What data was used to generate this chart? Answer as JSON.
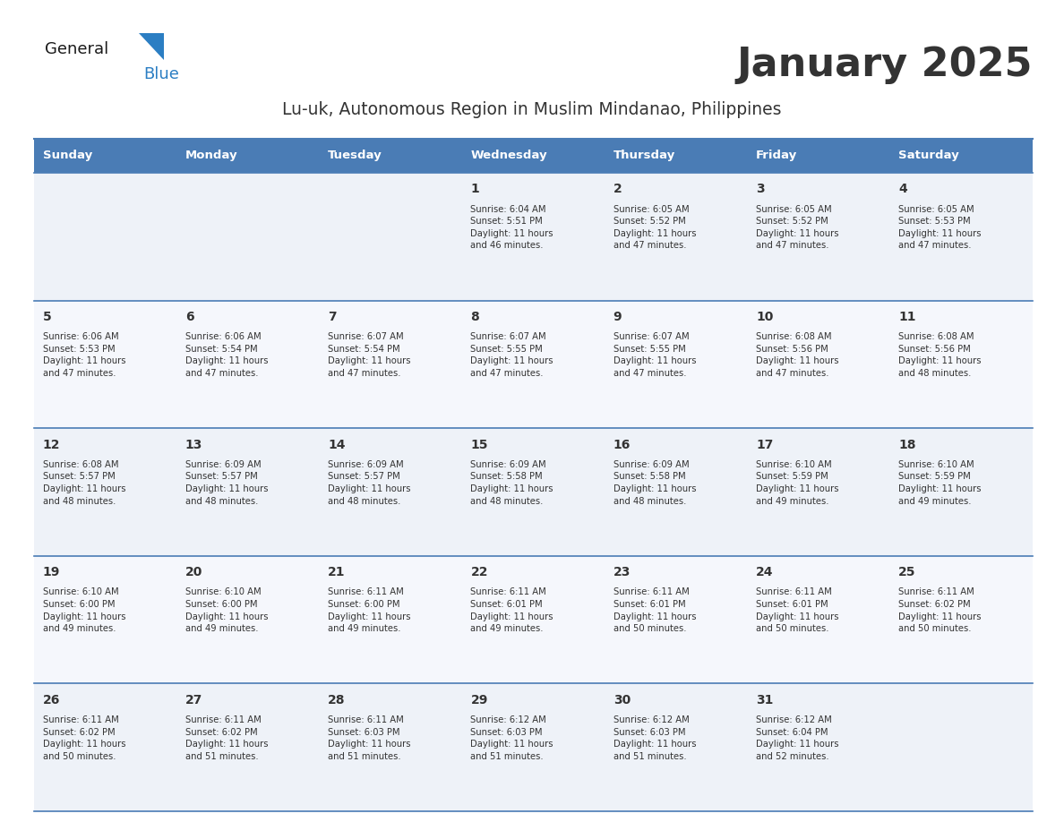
{
  "title": "January 2025",
  "subtitle": "Lu-uk, Autonomous Region in Muslim Mindanao, Philippines",
  "header_color": "#4a7cb5",
  "header_text_color": "#FFFFFF",
  "cell_bg_odd": "#F0F4FA",
  "cell_bg_even": "#FFFFFF",
  "border_color": "#4a7cb5",
  "text_color": "#333333",
  "info_text_color": "#333333",
  "days_of_week": [
    "Sunday",
    "Monday",
    "Tuesday",
    "Wednesday",
    "Thursday",
    "Friday",
    "Saturday"
  ],
  "calendar_data": [
    [
      {
        "day": "",
        "info": ""
      },
      {
        "day": "",
        "info": ""
      },
      {
        "day": "",
        "info": ""
      },
      {
        "day": "1",
        "info": "Sunrise: 6:04 AM\nSunset: 5:51 PM\nDaylight: 11 hours\nand 46 minutes."
      },
      {
        "day": "2",
        "info": "Sunrise: 6:05 AM\nSunset: 5:52 PM\nDaylight: 11 hours\nand 47 minutes."
      },
      {
        "day": "3",
        "info": "Sunrise: 6:05 AM\nSunset: 5:52 PM\nDaylight: 11 hours\nand 47 minutes."
      },
      {
        "day": "4",
        "info": "Sunrise: 6:05 AM\nSunset: 5:53 PM\nDaylight: 11 hours\nand 47 minutes."
      }
    ],
    [
      {
        "day": "5",
        "info": "Sunrise: 6:06 AM\nSunset: 5:53 PM\nDaylight: 11 hours\nand 47 minutes."
      },
      {
        "day": "6",
        "info": "Sunrise: 6:06 AM\nSunset: 5:54 PM\nDaylight: 11 hours\nand 47 minutes."
      },
      {
        "day": "7",
        "info": "Sunrise: 6:07 AM\nSunset: 5:54 PM\nDaylight: 11 hours\nand 47 minutes."
      },
      {
        "day": "8",
        "info": "Sunrise: 6:07 AM\nSunset: 5:55 PM\nDaylight: 11 hours\nand 47 minutes."
      },
      {
        "day": "9",
        "info": "Sunrise: 6:07 AM\nSunset: 5:55 PM\nDaylight: 11 hours\nand 47 minutes."
      },
      {
        "day": "10",
        "info": "Sunrise: 6:08 AM\nSunset: 5:56 PM\nDaylight: 11 hours\nand 47 minutes."
      },
      {
        "day": "11",
        "info": "Sunrise: 6:08 AM\nSunset: 5:56 PM\nDaylight: 11 hours\nand 48 minutes."
      }
    ],
    [
      {
        "day": "12",
        "info": "Sunrise: 6:08 AM\nSunset: 5:57 PM\nDaylight: 11 hours\nand 48 minutes."
      },
      {
        "day": "13",
        "info": "Sunrise: 6:09 AM\nSunset: 5:57 PM\nDaylight: 11 hours\nand 48 minutes."
      },
      {
        "day": "14",
        "info": "Sunrise: 6:09 AM\nSunset: 5:57 PM\nDaylight: 11 hours\nand 48 minutes."
      },
      {
        "day": "15",
        "info": "Sunrise: 6:09 AM\nSunset: 5:58 PM\nDaylight: 11 hours\nand 48 minutes."
      },
      {
        "day": "16",
        "info": "Sunrise: 6:09 AM\nSunset: 5:58 PM\nDaylight: 11 hours\nand 48 minutes."
      },
      {
        "day": "17",
        "info": "Sunrise: 6:10 AM\nSunset: 5:59 PM\nDaylight: 11 hours\nand 49 minutes."
      },
      {
        "day": "18",
        "info": "Sunrise: 6:10 AM\nSunset: 5:59 PM\nDaylight: 11 hours\nand 49 minutes."
      }
    ],
    [
      {
        "day": "19",
        "info": "Sunrise: 6:10 AM\nSunset: 6:00 PM\nDaylight: 11 hours\nand 49 minutes."
      },
      {
        "day": "20",
        "info": "Sunrise: 6:10 AM\nSunset: 6:00 PM\nDaylight: 11 hours\nand 49 minutes."
      },
      {
        "day": "21",
        "info": "Sunrise: 6:11 AM\nSunset: 6:00 PM\nDaylight: 11 hours\nand 49 minutes."
      },
      {
        "day": "22",
        "info": "Sunrise: 6:11 AM\nSunset: 6:01 PM\nDaylight: 11 hours\nand 49 minutes."
      },
      {
        "day": "23",
        "info": "Sunrise: 6:11 AM\nSunset: 6:01 PM\nDaylight: 11 hours\nand 50 minutes."
      },
      {
        "day": "24",
        "info": "Sunrise: 6:11 AM\nSunset: 6:01 PM\nDaylight: 11 hours\nand 50 minutes."
      },
      {
        "day": "25",
        "info": "Sunrise: 6:11 AM\nSunset: 6:02 PM\nDaylight: 11 hours\nand 50 minutes."
      }
    ],
    [
      {
        "day": "26",
        "info": "Sunrise: 6:11 AM\nSunset: 6:02 PM\nDaylight: 11 hours\nand 50 minutes."
      },
      {
        "day": "27",
        "info": "Sunrise: 6:11 AM\nSunset: 6:02 PM\nDaylight: 11 hours\nand 51 minutes."
      },
      {
        "day": "28",
        "info": "Sunrise: 6:11 AM\nSunset: 6:03 PM\nDaylight: 11 hours\nand 51 minutes."
      },
      {
        "day": "29",
        "info": "Sunrise: 6:12 AM\nSunset: 6:03 PM\nDaylight: 11 hours\nand 51 minutes."
      },
      {
        "day": "30",
        "info": "Sunrise: 6:12 AM\nSunset: 6:03 PM\nDaylight: 11 hours\nand 51 minutes."
      },
      {
        "day": "31",
        "info": "Sunrise: 6:12 AM\nSunset: 6:04 PM\nDaylight: 11 hours\nand 52 minutes."
      },
      {
        "day": "",
        "info": ""
      }
    ]
  ],
  "logo_text_general": "General",
  "logo_text_blue": "Blue",
  "logo_color_general": "#1a1a1a",
  "logo_color_blue": "#2B7EC3",
  "logo_triangle_color": "#2B7EC3"
}
